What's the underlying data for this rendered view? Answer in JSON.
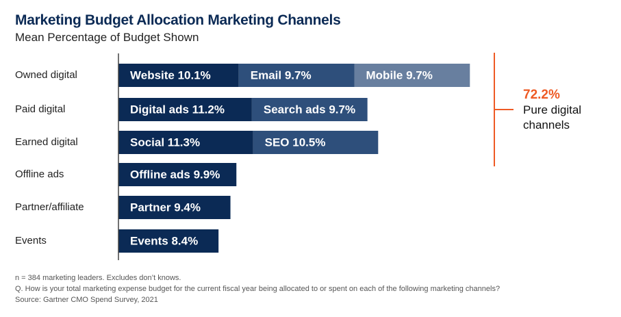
{
  "chart_data": {
    "type": "stacked-bar",
    "title": "Marketing Budget Allocation Marketing Channels",
    "subtitle": "Mean Percentage of Budget Shown",
    "categories": [
      "Owned digital",
      "Paid digital",
      "Earned digital",
      "Offline ads",
      "Partner/affiliate",
      "Events"
    ],
    "series": [
      {
        "color": "#0b2a55",
        "values": [
          10.1,
          11.2,
          11.3,
          9.9,
          9.4,
          8.4
        ],
        "value_labels": [
          "Website 10.1%",
          "Digital ads 11.2%",
          "Social 11.3%",
          "Offline ads 9.9%",
          "Partner 9.4%",
          "Events 8.4%"
        ]
      },
      {
        "color": "#2e4f7b",
        "values": [
          9.7,
          9.7,
          10.5,
          null,
          null,
          null
        ],
        "value_labels": [
          "Email 9.7%",
          "Search ads 9.7%",
          "SEO 10.5%",
          null,
          null,
          null
        ]
      },
      {
        "color": "#687f9f",
        "values": [
          9.7,
          null,
          null,
          null,
          null,
          null
        ],
        "value_labels": [
          "Mobile 9.7%",
          null,
          null,
          null,
          null,
          null
        ]
      }
    ],
    "annotation": {
      "value": 72.2,
      "label": "72.2%",
      "text": "Pure digital channels",
      "color": "#ee5a24"
    },
    "notes": [
      "n = 384 marketing leaders. Excludes don’t knows.",
      "Q. How is your total marketing expense budget for the current fiscal year being allocated to or spent on each of the following marketing channels?",
      "Source: Gartner CMO Spend Survey, 2021"
    ]
  }
}
